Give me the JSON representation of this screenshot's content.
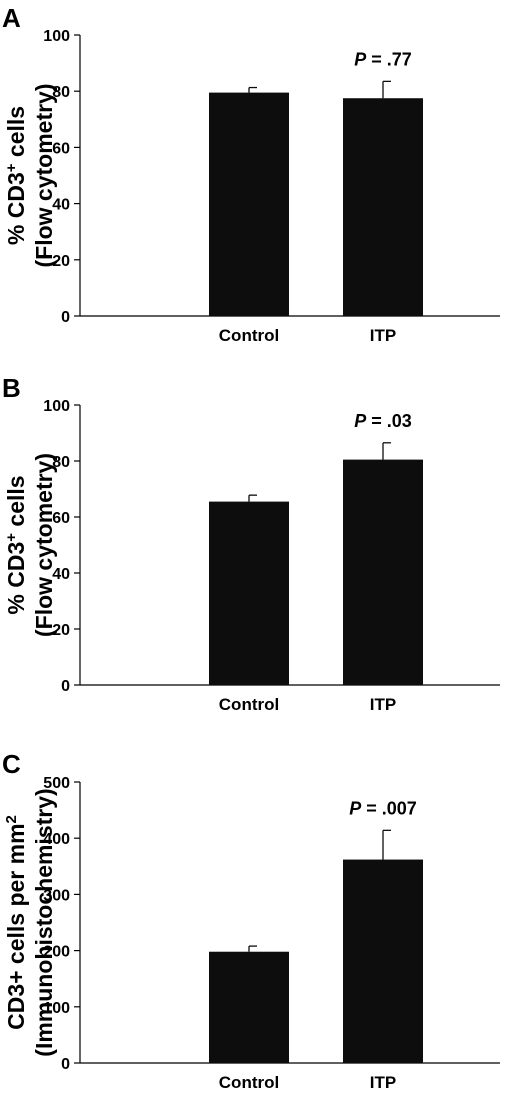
{
  "chart_data": [
    {
      "panel": "A",
      "type": "bar",
      "categories": [
        "Control",
        "ITP"
      ],
      "values": [
        79.5,
        77.5
      ],
      "errors": [
        1.8,
        6.0
      ],
      "ylabel_line1": "% CD3",
      "ylabel_sup": "+",
      "ylabel_line1_tail": " cells",
      "ylabel_line2": "(Flow cytometry)",
      "ylim": [
        0,
        100
      ],
      "yticks": [
        0,
        20,
        40,
        60,
        80,
        100
      ],
      "annotation": {
        "italic": "P",
        "text": " = .77",
        "category_index": 1
      }
    },
    {
      "panel": "B",
      "type": "bar",
      "categories": [
        "Control",
        "ITP"
      ],
      "values": [
        65.5,
        80.5
      ],
      "errors": [
        2.3,
        6.0
      ],
      "ylabel_line1": "% CD3",
      "ylabel_sup": "+",
      "ylabel_line1_tail": " cells",
      "ylabel_line2": "(Flow cytometry)",
      "ylim": [
        0,
        100
      ],
      "yticks": [
        0,
        20,
        40,
        60,
        80,
        100
      ],
      "annotation": {
        "italic": "P",
        "text": " = .03",
        "category_index": 1
      }
    },
    {
      "panel": "C",
      "type": "bar",
      "categories": [
        "Control",
        "ITP"
      ],
      "values": [
        198,
        362
      ],
      "errors": [
        10,
        52
      ],
      "ylabel_line1": "CD3+ cells per mm",
      "ylabel_sup": "2",
      "ylabel_line1_tail": "",
      "ylabel_line2": "(Immunohistochemistry)",
      "ylim": [
        0,
        500
      ],
      "yticks": [
        0,
        100,
        200,
        300,
        400,
        500
      ],
      "annotation": {
        "italic": "P",
        "text": " = .007",
        "category_index": 1
      }
    }
  ],
  "colors": {
    "bar": "#0d0d0d",
    "axis": "#000000"
  }
}
